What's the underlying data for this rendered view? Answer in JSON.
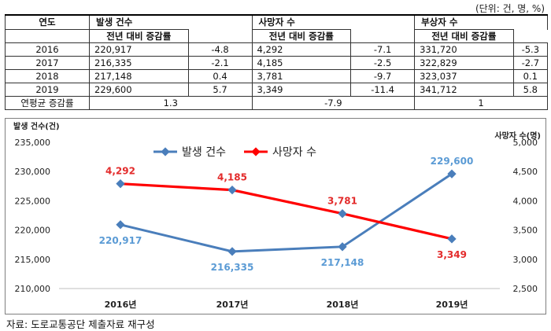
{
  "unit_note": "(단위: 건, 명, %)",
  "table": {
    "year_header": "연도",
    "groups": [
      {
        "label": "발생 건수",
        "sub_label": "전년 대비 증감률"
      },
      {
        "label": "사망자 수",
        "sub_label": "전년 대비 증감률"
      },
      {
        "label": "부상자 수",
        "sub_label": "전년 대비 증감률"
      }
    ],
    "rows": [
      {
        "year": "2016",
        "accidents": "220,917",
        "acc_chg": "-4.8",
        "deaths": "4,292",
        "death_chg": "-7.1",
        "injured": "331,720",
        "inj_chg": "-5.3"
      },
      {
        "year": "2017",
        "accidents": "216,335",
        "acc_chg": "-2.1",
        "deaths": "4,185",
        "death_chg": "-2.5",
        "injured": "322,829",
        "inj_chg": "-2.7"
      },
      {
        "year": "2018",
        "accidents": "217,148",
        "acc_chg": "0.4",
        "deaths": "3,781",
        "death_chg": "-9.7",
        "injured": "323,037",
        "inj_chg": "0.1"
      },
      {
        "year": "2019",
        "accidents": "229,600",
        "acc_chg": "5.7",
        "deaths": "3,349",
        "death_chg": "-11.4",
        "injured": "341,712",
        "inj_chg": "5.8"
      }
    ],
    "cagr": {
      "label": "연평균 증감률",
      "accidents": "1.3",
      "deaths": "-7.9",
      "injured": "1"
    }
  },
  "chart_data": {
    "type": "line",
    "categories": [
      "2016년",
      "2017년",
      "2018년",
      "2019년"
    ],
    "series": [
      {
        "name": "발생 건수",
        "axis": "left",
        "color": "#4a7ebb",
        "values": [
          220917,
          216335,
          217148,
          229600
        ],
        "labels": [
          "220,917",
          "216,335",
          "217,148",
          "229,600"
        ]
      },
      {
        "name": "사망자 수",
        "axis": "right",
        "color": "#ff0000",
        "values": [
          4292,
          4185,
          3781,
          3349
        ],
        "labels": [
          "4,292",
          "4,185",
          "3,781",
          "3,349"
        ]
      }
    ],
    "ylabel_left": "발생 건수(건)",
    "ylabel_right": "사망자 수(명)",
    "ylim_left": [
      210000,
      235000
    ],
    "yticks_left": [
      "210,000",
      "215,000",
      "220,000",
      "225,000",
      "230,000",
      "235,000"
    ],
    "ylim_right": [
      2500,
      5000
    ],
    "yticks_right": [
      "2,500",
      "3,000",
      "3,500",
      "4,000",
      "4,500",
      "5,000"
    ],
    "legend_position": "top-center",
    "grid": false
  },
  "source_note": "자료: 도로교통공단 제출자료 재구성"
}
